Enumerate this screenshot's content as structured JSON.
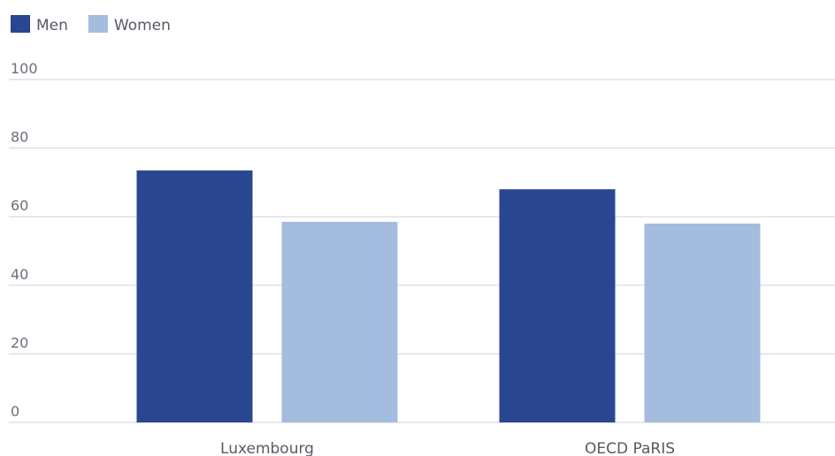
{
  "chart_data": {
    "type": "bar",
    "categories": [
      "Luxembourg",
      "OECD PaRIS"
    ],
    "series": [
      {
        "name": "Men",
        "color": "#2b4690",
        "values": [
          73.5,
          68
        ]
      },
      {
        "name": "Women",
        "color": "#a4bcde",
        "values": [
          58.5,
          58
        ]
      }
    ],
    "ylim": [
      0,
      100
    ],
    "yticks": [
      0,
      20,
      40,
      60,
      80,
      100
    ],
    "grid": true,
    "legend": "top-left"
  }
}
